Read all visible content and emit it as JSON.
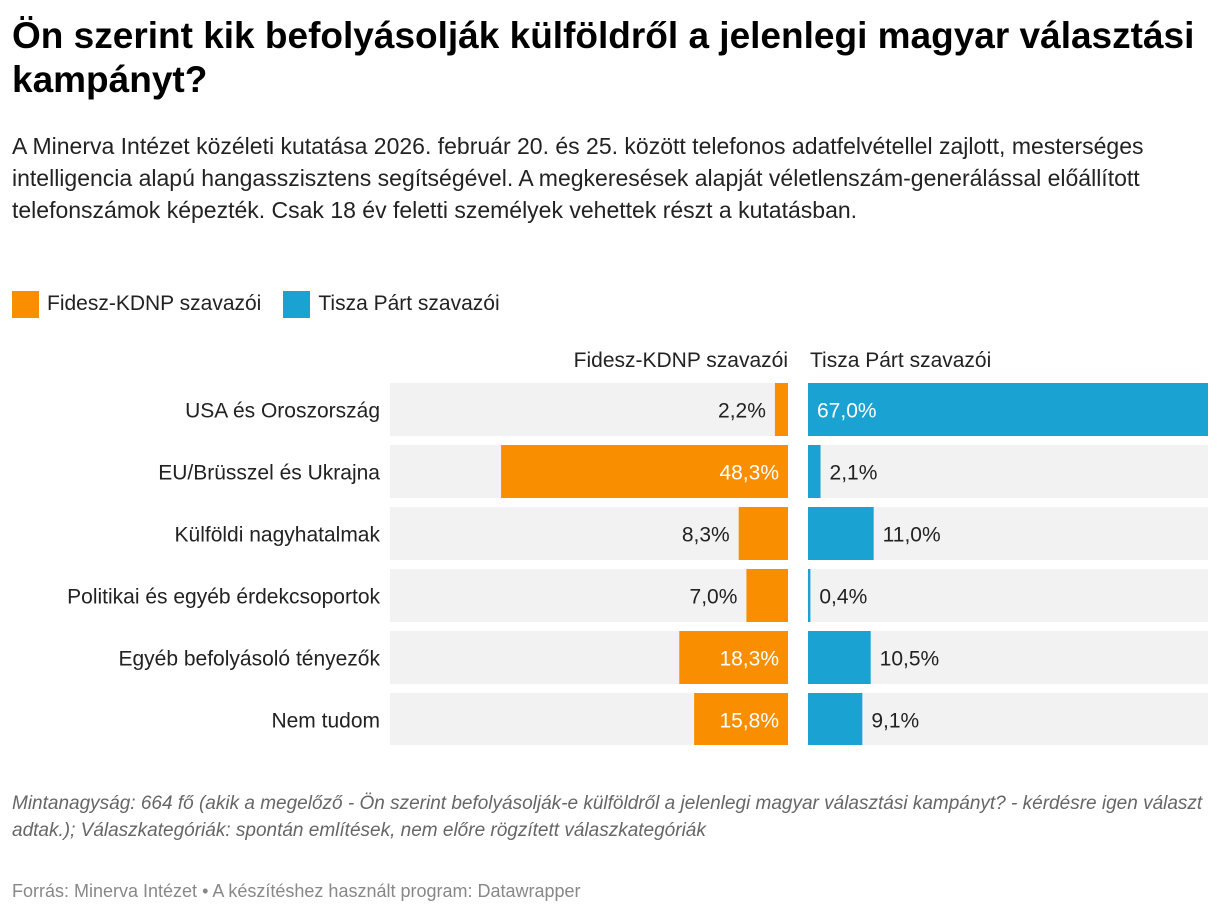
{
  "title": "Ön szerint kik befolyásolják külföldről a jelenlegi magyar választási kampányt?",
  "description": "A Minerva Intézet közéleti kutatása 2026. február 20. és 25. között telefonos adatfelvétellel zajlott, mesterséges intelligencia alapú hangasszisztens segítségével. A megkeresések alapját véletlenszám-generálással előállított telefonszámok képezték. Csak 18 év feletti személyek vehettek részt a kutatásban.",
  "legend": [
    {
      "label": "Fidesz-KDNP szavazói",
      "color": "#f88e00"
    },
    {
      "label": "Tisza Párt szavazói",
      "color": "#19a2d2"
    }
  ],
  "footnote": "Mintanagyság: 664 fő (akik a megelőző - Ön szerint befolyásolják-e külföldről a jelenlegi magyar választási kampányt? - kérdésre igen választ adtak.); Válaszkategóriák: spontán említések, nem előre rögzített válaszkategóriák",
  "source": "Forrás: Minerva Intézet • A készítéshez használt program: Datawrapper",
  "chart_data": {
    "type": "bar",
    "orientation": "horizontal",
    "title": "Ön szerint kik befolyásolják külföldről a jelenlegi magyar választási kampányt?",
    "categories": [
      "USA és Oroszország",
      "EU/Brüsszel és Ukrajna",
      "Külföldi nagyhatalmak",
      "Politikai és egyéb érdekcsoportok",
      "Egyéb befolyásoló tényezők",
      "Nem tudom"
    ],
    "series": [
      {
        "name": "Fidesz-KDNP szavazói",
        "color": "#f88e00",
        "values": [
          2.2,
          48.3,
          8.3,
          7.0,
          18.3,
          15.8
        ],
        "labels": [
          "2,2%",
          "48,3%",
          "8,3%",
          "7,0%",
          "18,3%",
          "15,8%"
        ]
      },
      {
        "name": "Tisza Párt szavazói",
        "color": "#19a2d2",
        "values": [
          67.0,
          2.1,
          11.0,
          0.4,
          10.5,
          9.1
        ],
        "labels": [
          "67,0%",
          "2,1%",
          "11,0%",
          "0,4%",
          "10,5%",
          "9,1%"
        ]
      }
    ],
    "xlim": [
      0,
      67.0
    ],
    "unit": "%",
    "background_color": "#f2f2f2"
  }
}
